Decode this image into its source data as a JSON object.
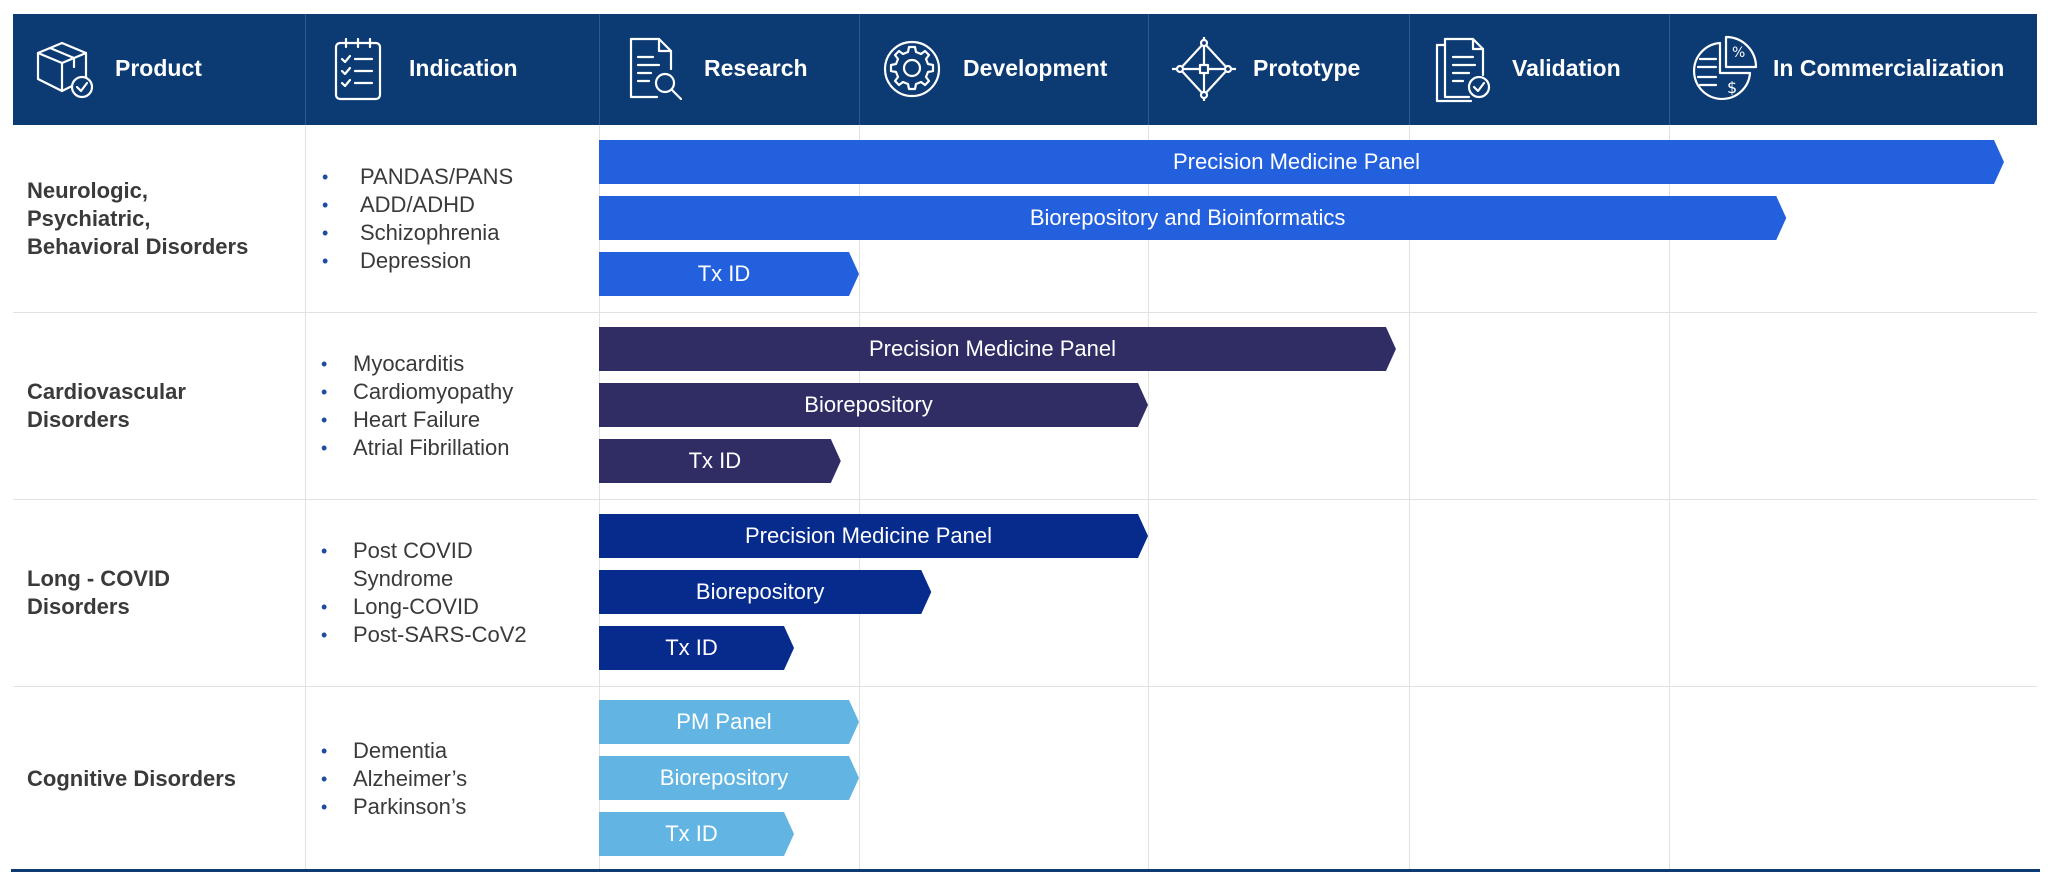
{
  "header": {
    "columns": [
      {
        "label": "Product",
        "icon": "box-check-icon"
      },
      {
        "label": "Indication",
        "icon": "clipboard-checklist-icon"
      },
      {
        "label": "Research",
        "icon": "document-search-icon"
      },
      {
        "label": "Development",
        "icon": "gear-icon"
      },
      {
        "label": "Prototype",
        "icon": "network-diamond-icon"
      },
      {
        "label": "Validation",
        "icon": "document-check-icon"
      },
      {
        "label": "In Commercialization",
        "icon": "pie-chart-money-icon"
      }
    ]
  },
  "rows": [
    {
      "product": [
        "Neurologic,",
        "Psychiatric,",
        "Behavioral Disorders"
      ],
      "indications": [
        "PANDAS/PANS",
        "ADD/ADHD",
        "Schizophrenia",
        "Depression"
      ]
    },
    {
      "product": [
        "Cardiovascular",
        "Disorders"
      ],
      "indications": [
        "Myocarditis",
        "Cardiomyopathy",
        "Heart Failure",
        "Atrial Fibrillation"
      ]
    },
    {
      "product": [
        "Long - COVID",
        "Disorders"
      ],
      "indications": [
        "Post COVID\nSyndrome",
        "Long-COVID",
        "Post-SARS-CoV2"
      ]
    },
    {
      "product": [
        "Cognitive Disorders"
      ],
      "indications": [
        "Dementia",
        "Alzheimer’s",
        "Parkinson’s"
      ]
    }
  ],
  "colors": {
    "header": "#0c3a72",
    "group_neuro": "#2360de",
    "group_cardio": "#2f2d63",
    "group_covid": "#062b8c",
    "group_cognitive": "#62b4e2"
  },
  "chart_data": {
    "type": "bar",
    "orientation": "horizontal",
    "stages": [
      "Research",
      "Development",
      "Prototype",
      "Validation",
      "In Commercialization"
    ],
    "value_unit": "stages completed (0-5)",
    "xlim": [
      0,
      5
    ],
    "series": [
      {
        "group": "Neurologic, Psychiatric, Behavioral Disorders",
        "color": "#2360de",
        "bars": [
          {
            "label": "Precision Medicine Panel",
            "value": 5.0
          },
          {
            "label": "Biorepository and Bioinformatics",
            "value": 4.35
          },
          {
            "label": "Tx ID",
            "value": 1.0
          }
        ]
      },
      {
        "group": "Cardiovascular Disorders",
        "color": "#2f2d63",
        "bars": [
          {
            "label": "Precision Medicine Panel",
            "value": 2.95
          },
          {
            "label": "Biorepository",
            "value": 2.0
          },
          {
            "label": "Tx ID",
            "value": 0.93
          }
        ]
      },
      {
        "group": "Long - COVID Disorders",
        "color": "#062b8c",
        "bars": [
          {
            "label": "Precision Medicine Panel",
            "value": 2.0
          },
          {
            "label": "Biorepository",
            "value": 1.25
          },
          {
            "label": "Tx ID",
            "value": 0.75
          }
        ]
      },
      {
        "group": "Cognitive Disorders",
        "color": "#62b4e2",
        "bars": [
          {
            "label": "PM Panel",
            "value": 1.0
          },
          {
            "label": "Biorepository",
            "value": 1.0
          },
          {
            "label": "Tx ID",
            "value": 0.75
          }
        ]
      }
    ]
  }
}
